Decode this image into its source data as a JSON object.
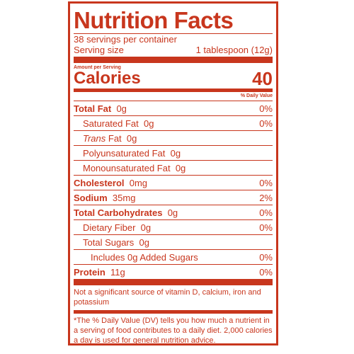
{
  "label": {
    "title": "Nutrition Facts",
    "servings_per_container": "38 servings per container",
    "serving_size_label": "Serving size",
    "serving_size_value": "1 tablespoon (12g)",
    "amount_per_serving": "Amount per Serving",
    "calories_label": "Calories",
    "calories_value": "40",
    "daily_value_header": "% Daily Value",
    "nutrients": [
      {
        "name": "Total Fat",
        "amount": "0g",
        "dv": "0%"
      },
      {
        "name": "Saturated Fat",
        "amount": "0g",
        "dv": "0%"
      },
      {
        "name": "Trans",
        "name_suffix": " Fat",
        "amount": "0g",
        "dv": ""
      },
      {
        "name": "Polyunsaturated Fat",
        "amount": "0g",
        "dv": ""
      },
      {
        "name": "Monounsaturated Fat",
        "amount": "0g",
        "dv": ""
      },
      {
        "name": "Cholesterol",
        "amount": "0mg",
        "dv": "0%"
      },
      {
        "name": "Sodium",
        "amount": "35mg",
        "dv": "2%"
      },
      {
        "name": "Total Carbohydrates",
        "amount": "0g",
        "dv": "0%"
      },
      {
        "name": "Dietary Fiber",
        "amount": "0g",
        "dv": "0%"
      },
      {
        "name": "Total Sugars",
        "amount": "0g",
        "dv": ""
      },
      {
        "name": "Includes 0g Added Sugars",
        "amount": "",
        "dv": "0%"
      },
      {
        "name": "Protein",
        "amount": "11g",
        "dv": "0%"
      }
    ],
    "vitamin_note": "Not a significant source of vitamin D, calcium, iron and potassium",
    "footnote": "*The % Daily Value (DV) tells you how much a nutrient in a serving of food contributes to a daily diet.  2,000 calories a day is used for general nutrition advice.",
    "color": "#c8361d"
  }
}
